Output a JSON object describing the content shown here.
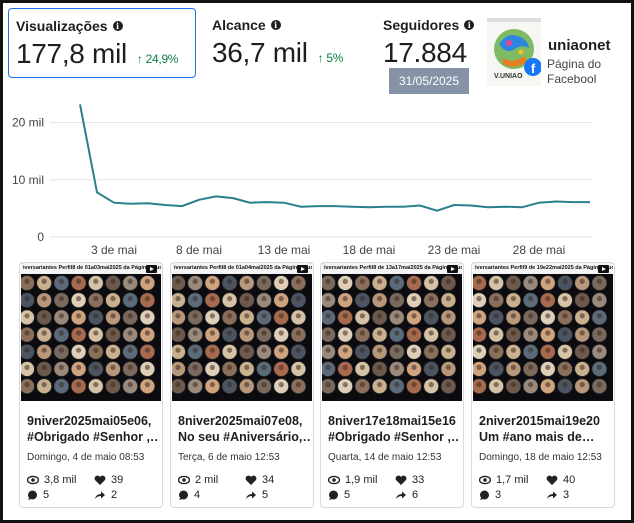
{
  "metrics": {
    "views": {
      "label": "Visualizações",
      "value": "177,8 mil",
      "change": "↑ 24,9%"
    },
    "reach": {
      "label": "Alcance",
      "value": "36,7 mil",
      "change": "↑ 5%"
    },
    "followers": {
      "label": "Seguidores",
      "value": "17.884",
      "date": "31/05/2025"
    }
  },
  "page": {
    "name": "uniaonet",
    "type": "Página do Facebool",
    "logo_text": "V.UNIAO"
  },
  "chart_data": {
    "type": "line",
    "title": "",
    "x": [
      1,
      2,
      3,
      4,
      5,
      6,
      7,
      8,
      9,
      10,
      11,
      12,
      13,
      14,
      15,
      16,
      17,
      18,
      19,
      20,
      21,
      22,
      23,
      24,
      25,
      26,
      27,
      28,
      29,
      30,
      31
    ],
    "values": [
      23.2,
      7.8,
      6.0,
      5.8,
      5.9,
      5.6,
      5.4,
      6.5,
      7.1,
      6.8,
      6.0,
      6.1,
      6.0,
      5.3,
      5.4,
      5.4,
      5.3,
      5.2,
      5.3,
      5.3,
      5.5,
      4.6,
      5.6,
      5.5,
      5.2,
      5.3,
      5.2,
      6.0,
      6.2,
      6.1,
      6.1
    ],
    "x_tick_labels": [
      "3 de mai",
      "8 de mai",
      "13 de mai",
      "18 de mai",
      "23 de mai",
      "28 de mai"
    ],
    "y_tick_labels": [
      "0",
      "10 mil",
      "20 mil"
    ],
    "ylim": [
      0,
      25
    ],
    "line_color": "#2a7f8f"
  },
  "posts": [
    {
      "thumb_title": "iversariantes Perfil8 de 01a03mai2025 da Página u-uonei",
      "title_line1": "9niver2025mai05e06,",
      "title_line2": "#Obrigado #Senhor ,…",
      "date": "Domingo, 4 de maio 08:53",
      "views": "3,8 mil",
      "likes": "39",
      "comments": "5",
      "shares": "2"
    },
    {
      "thumb_title": "iversariantes Perfil8 de 01a04mai2025 da Página u-uonei",
      "title_line1": "8niver2025mai07e08,",
      "title_line2": "No seu #Aniversário,…",
      "date": "Terça, 6 de maio 12:53",
      "views": "2 mil",
      "likes": "34",
      "comments": "4",
      "shares": "5"
    },
    {
      "thumb_title": "iversariantes Perfil8 de 13a17mai2025 da Página u-uonei",
      "title_line1": "8niver17e18mai15e16",
      "title_line2": "#Obrigado #Senhor ,…",
      "date": "Quarta, 14 de maio 12:53",
      "views": "1,9 mil",
      "likes": "33",
      "comments": "5",
      "shares": "6"
    },
    {
      "thumb_title": "iversariantes Perfil9 de 19e22mai2025 da Página u-uonei",
      "title_line1": "2niver2015mai19e20",
      "title_line2": "Um #ano mais de…",
      "date": "Domingo, 18 de maio 12:53",
      "views": "1,7 mil",
      "likes": "40",
      "comments": "3",
      "shares": "3"
    }
  ]
}
